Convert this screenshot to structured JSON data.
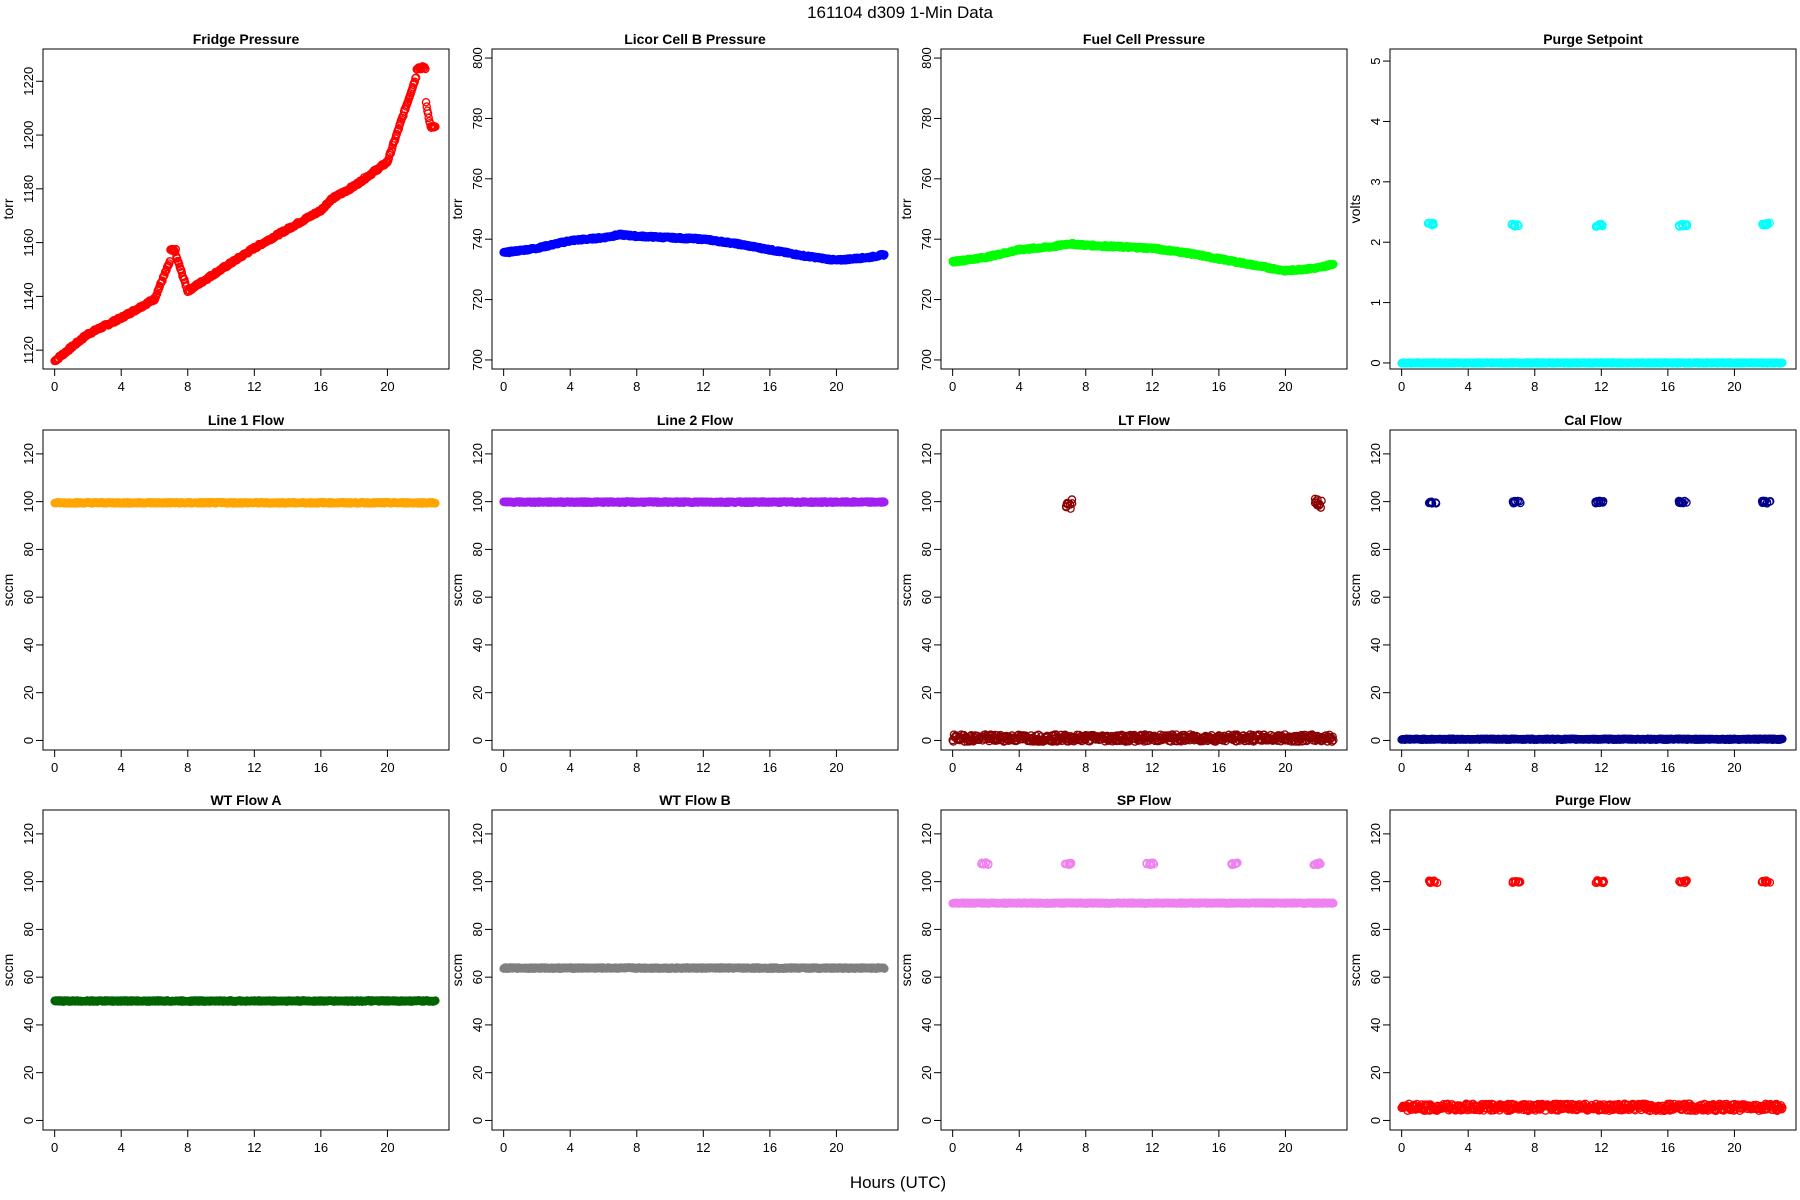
{
  "figure": {
    "title": "161104   d309   1-Min Data",
    "xlabel": "Hours (UTC)"
  },
  "chart_data": [
    {
      "title": "Fridge Pressure",
      "type": "scatter",
      "ylabel": "torr",
      "xlim": [
        -0.7,
        23.7
      ],
      "ylim": [
        1113,
        1232
      ],
      "yticks": [
        1120,
        1140,
        1160,
        1180,
        1200,
        1220
      ],
      "xticks": [
        0,
        4,
        8,
        12,
        16,
        20
      ],
      "grid": false,
      "series": [
        {
          "color": "#ff0000",
          "x": [
            0,
            2,
            4,
            6,
            7.2,
            8,
            10,
            12,
            14,
            16,
            16.6,
            18,
            20,
            21.9,
            22.6
          ],
          "y": [
            1116,
            1126,
            1132,
            1139,
            1157,
            1142,
            1150,
            1158,
            1165,
            1172,
            1176,
            1181,
            1190,
            1225,
            1203
          ]
        }
      ]
    },
    {
      "title": "Licor Cell B Pressure",
      "type": "scatter",
      "ylabel": "torr",
      "xlim": [
        -0.7,
        23.7
      ],
      "ylim": [
        697,
        803
      ],
      "yticks": [
        700,
        720,
        740,
        760,
        780,
        800
      ],
      "xticks": [
        0,
        4,
        8,
        12,
        16,
        20
      ],
      "grid": false,
      "series": [
        {
          "color": "#0000ff",
          "x": [
            0,
            2,
            4,
            6,
            7,
            8,
            10,
            12,
            14,
            16,
            18,
            20,
            22,
            23
          ],
          "y": [
            735.5,
            737,
            739.5,
            740.5,
            741.5,
            741,
            740.5,
            740,
            738.5,
            736.5,
            734.5,
            733,
            734,
            735
          ]
        }
      ]
    },
    {
      "title": "Fuel Cell Pressure",
      "type": "scatter",
      "ylabel": "torr",
      "xlim": [
        -0.7,
        23.7
      ],
      "ylim": [
        697,
        803
      ],
      "yticks": [
        700,
        720,
        740,
        760,
        780,
        800
      ],
      "xticks": [
        0,
        4,
        8,
        12,
        16,
        20
      ],
      "grid": false,
      "series": [
        {
          "color": "#00ff00",
          "x": [
            0,
            2,
            4,
            6,
            7,
            8,
            10,
            12,
            14,
            16,
            18,
            20,
            22,
            23
          ],
          "y": [
            732.5,
            734,
            736.5,
            737.5,
            738.5,
            738,
            737.5,
            737,
            735.5,
            733.5,
            731.5,
            729.5,
            730.5,
            732
          ]
        }
      ]
    },
    {
      "title": "Purge Setpoint",
      "type": "scatter",
      "ylabel": "volts",
      "xlim": [
        -0.7,
        23.7
      ],
      "ylim": [
        -0.1,
        5.2
      ],
      "yticks": [
        0,
        1,
        2,
        3,
        4,
        5
      ],
      "xticks": [
        0,
        4,
        8,
        12,
        16,
        20
      ],
      "grid": false,
      "series": [
        {
          "color": "#00ffff",
          "baseline": 0,
          "x": [
            1.8,
            6.8,
            11.9,
            16.9,
            21.9
          ],
          "y": [
            2.3,
            2.28,
            2.28,
            2.28,
            2.3
          ]
        }
      ]
    },
    {
      "title": "Line 1 Flow",
      "type": "scatter",
      "ylabel": "sccm",
      "xlim": [
        -0.7,
        23.7
      ],
      "ylim": [
        -4,
        130
      ],
      "yticks": [
        0,
        20,
        40,
        60,
        80,
        100,
        120
      ],
      "xticks": [
        0,
        4,
        8,
        12,
        16,
        20
      ],
      "grid": false,
      "series": [
        {
          "color": "#ffa500",
          "value": 99.5
        }
      ]
    },
    {
      "title": "Line 2 Flow",
      "type": "scatter",
      "ylabel": "sccm",
      "xlim": [
        -0.7,
        23.7
      ],
      "ylim": [
        -4,
        130
      ],
      "yticks": [
        0,
        20,
        40,
        60,
        80,
        100,
        120
      ],
      "xticks": [
        0,
        4,
        8,
        12,
        16,
        20
      ],
      "grid": false,
      "series": [
        {
          "color": "#a020f0",
          "value": 99.8
        }
      ]
    },
    {
      "title": "LT Flow",
      "type": "scatter",
      "ylabel": "sccm",
      "xlim": [
        -0.7,
        23.7
      ],
      "ylim": [
        -4,
        130
      ],
      "yticks": [
        0,
        20,
        40,
        60,
        80,
        100,
        120
      ],
      "xticks": [
        0,
        4,
        8,
        12,
        16,
        20
      ],
      "grid": false,
      "series": [
        {
          "color": "#8b0000",
          "baseline": 1,
          "x": [
            7.0,
            22.0
          ],
          "y": [
            99,
            99.5
          ]
        }
      ]
    },
    {
      "title": "Cal Flow",
      "type": "scatter",
      "ylabel": "sccm",
      "xlim": [
        -0.7,
        23.7
      ],
      "ylim": [
        -4,
        130
      ],
      "yticks": [
        0,
        20,
        40,
        60,
        80,
        100,
        120
      ],
      "xticks": [
        0,
        4,
        8,
        12,
        16,
        20
      ],
      "grid": false,
      "series": [
        {
          "color": "#00008b",
          "baseline": 0.5,
          "x": [
            1.9,
            6.9,
            11.9,
            16.9,
            21.9
          ],
          "y": [
            99.8,
            99.8,
            99.8,
            99.8,
            99.8
          ]
        }
      ]
    },
    {
      "title": "WT Flow A",
      "type": "scatter",
      "ylabel": "sccm",
      "xlim": [
        -0.7,
        23.7
      ],
      "ylim": [
        -4,
        130
      ],
      "yticks": [
        0,
        20,
        40,
        60,
        80,
        100,
        120
      ],
      "xticks": [
        0,
        4,
        8,
        12,
        16,
        20
      ],
      "grid": false,
      "series": [
        {
          "color": "#006400",
          "value": 50
        }
      ]
    },
    {
      "title": "WT Flow B",
      "type": "scatter",
      "ylabel": "sccm",
      "xlim": [
        -0.7,
        23.7
      ],
      "ylim": [
        -4,
        130
      ],
      "yticks": [
        0,
        20,
        40,
        60,
        80,
        100,
        120
      ],
      "xticks": [
        0,
        4,
        8,
        12,
        16,
        20
      ],
      "grid": false,
      "series": [
        {
          "color": "#808080",
          "value": 63.8
        }
      ]
    },
    {
      "title": "SP Flow",
      "type": "scatter",
      "ylabel": "sccm",
      "xlim": [
        -0.7,
        23.7
      ],
      "ylim": [
        -4,
        130
      ],
      "yticks": [
        0,
        20,
        40,
        60,
        80,
        100,
        120
      ],
      "xticks": [
        0,
        4,
        8,
        12,
        16,
        20
      ],
      "grid": false,
      "series": [
        {
          "color": "#ee82ee",
          "baseline": 91,
          "x": [
            1.9,
            6.9,
            11.9,
            16.9,
            21.9
          ],
          "y": [
            107.5,
            107.5,
            107.5,
            107.5,
            107.5
          ]
        }
      ]
    },
    {
      "title": "Purge Flow",
      "type": "scatter",
      "ylabel": "sccm",
      "xlim": [
        -0.7,
        23.7
      ],
      "ylim": [
        -4,
        130
      ],
      "yticks": [
        0,
        20,
        40,
        60,
        80,
        100,
        120
      ],
      "xticks": [
        0,
        4,
        8,
        12,
        16,
        20
      ],
      "grid": false,
      "series": [
        {
          "color": "#ff0000",
          "baseline": 5.5,
          "x": [
            1.9,
            6.9,
            11.9,
            16.9,
            21.9
          ],
          "y": [
            100,
            100,
            100,
            100,
            100
          ]
        }
      ]
    }
  ]
}
